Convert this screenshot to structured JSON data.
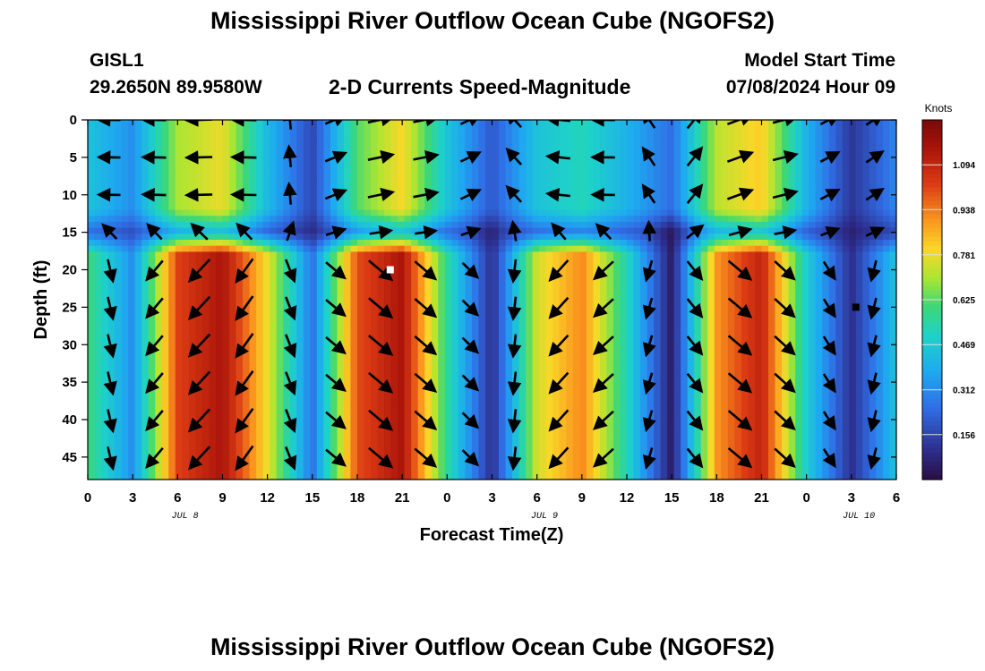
{
  "header": {
    "title": "Mississippi River Outflow Ocean Cube (NGOFS2)",
    "station": "GISL1",
    "coordinates": "29.2650N  89.9580W",
    "subtitle": "2-D Currents Speed-Magnitude",
    "model_start_label": "Model Start Time",
    "model_start_value": "07/08/2024 Hour 09"
  },
  "footer": {
    "title": "Mississippi River Outflow Ocean Cube (NGOFS2)"
  },
  "chart_data": {
    "type": "heatmap",
    "xlabel": "Forecast Time(Z)",
    "ylabel": "Depth (ft)",
    "x_tick_labels": [
      "0",
      "3",
      "6",
      "9",
      "12",
      "15",
      "18",
      "21",
      "0",
      "3",
      "6",
      "9",
      "12",
      "15",
      "18",
      "21",
      "0",
      "3",
      "6"
    ],
    "date_labels": [
      "JUL 8",
      "JUL 9",
      "JUL 10"
    ],
    "y_tick_labels": [
      "0",
      "5",
      "10",
      "15",
      "20",
      "25",
      "30",
      "35",
      "40",
      "45"
    ],
    "ylim": [
      48,
      0
    ],
    "colorbar": {
      "unit": "Knots",
      "tick_labels": [
        "1.094",
        "0.938",
        "0.781",
        "0.625",
        "0.469",
        "0.312",
        "0.156"
      ],
      "range": [
        0.0,
        1.25
      ]
    },
    "surface_layer_depths_ft": [
      0,
      5,
      10
    ],
    "deep_layer_depths_ft": [
      20,
      25,
      30,
      35,
      40,
      45
    ],
    "surface_speed_knots": [
      {
        "hour": 0,
        "value": 0.45
      },
      {
        "hour": 3,
        "value": 0.32
      },
      {
        "hour": 6,
        "value": 0.7
      },
      {
        "hour": 9,
        "value": 0.78
      },
      {
        "hour": 12,
        "value": 0.42
      },
      {
        "hour": 15,
        "value": 0.16
      },
      {
        "hour": 18,
        "value": 0.62
      },
      {
        "hour": 21,
        "value": 0.8
      },
      {
        "hour": 24,
        "value": 0.45
      },
      {
        "hour": 27,
        "value": 0.2
      },
      {
        "hour": 30,
        "value": 0.45
      },
      {
        "hour": 33,
        "value": 0.52
      },
      {
        "hour": 36,
        "value": 0.4
      },
      {
        "hour": 39,
        "value": 0.25
      },
      {
        "hour": 42,
        "value": 0.72
      },
      {
        "hour": 45,
        "value": 0.82
      },
      {
        "hour": 48,
        "value": 0.4
      },
      {
        "hour": 51,
        "value": 0.12
      },
      {
        "hour": 54,
        "value": 0.3
      }
    ],
    "deep_speed_knots": [
      {
        "hour": 0,
        "value": 0.6
      },
      {
        "hour": 3,
        "value": 0.32
      },
      {
        "hour": 6,
        "value": 1.02
      },
      {
        "hour": 9,
        "value": 1.15
      },
      {
        "hour": 12,
        "value": 0.78
      },
      {
        "hour": 15,
        "value": 0.26
      },
      {
        "hour": 18,
        "value": 1.0
      },
      {
        "hour": 21,
        "value": 1.15
      },
      {
        "hour": 24,
        "value": 0.55
      },
      {
        "hour": 27,
        "value": 0.1
      },
      {
        "hour": 30,
        "value": 0.75
      },
      {
        "hour": 33,
        "value": 0.92
      },
      {
        "hour": 36,
        "value": 0.52
      },
      {
        "hour": 39,
        "value": 0.05
      },
      {
        "hour": 42,
        "value": 0.9
      },
      {
        "hour": 45,
        "value": 1.1
      },
      {
        "hour": 48,
        "value": 0.48
      },
      {
        "hour": 51,
        "value": 0.1
      },
      {
        "hour": 54,
        "value": 0.45
      }
    ],
    "surface_direction_deg": [
      {
        "hour": 0,
        "value": 180
      },
      {
        "hour": 4,
        "value": 178
      },
      {
        "hour": 8,
        "value": 182
      },
      {
        "hour": 11,
        "value": 178
      },
      {
        "hour": 15,
        "value": 45
      },
      {
        "hour": 17,
        "value": 15
      },
      {
        "hour": 21,
        "value": 10
      },
      {
        "hour": 24,
        "value": 12
      },
      {
        "hour": 26,
        "value": 30
      },
      {
        "hour": 28,
        "value": 95
      },
      {
        "hour": 29,
        "value": 170
      },
      {
        "hour": 35,
        "value": 180
      },
      {
        "hour": 39,
        "value": 90
      },
      {
        "hour": 40,
        "value": 60
      },
      {
        "hour": 42,
        "value": 25
      },
      {
        "hour": 46,
        "value": 12
      },
      {
        "hour": 50,
        "value": 30
      },
      {
        "hour": 54,
        "value": 35
      }
    ],
    "deep_direction_deg": [
      {
        "hour": 0,
        "value": -45
      },
      {
        "hour": 4,
        "value": -130
      },
      {
        "hour": 10,
        "value": -135
      },
      {
        "hour": 15,
        "value": -40
      },
      {
        "hour": 22,
        "value": -40
      },
      {
        "hour": 26,
        "value": -45
      },
      {
        "hour": 28,
        "value": -85
      },
      {
        "hour": 30,
        "value": -130
      },
      {
        "hour": 36,
        "value": -140
      },
      {
        "hour": 38,
        "value": -95
      },
      {
        "hour": 39,
        "value": -85
      },
      {
        "hour": 41,
        "value": -40
      },
      {
        "hour": 46,
        "value": -40
      },
      {
        "hour": 50,
        "value": -60
      },
      {
        "hour": 54,
        "value": -130
      }
    ],
    "markers": [
      {
        "hour": 20.2,
        "depth_ft": 20,
        "color": "#ffffff"
      },
      {
        "hour": 51.3,
        "depth_ft": 25,
        "color": "#000000"
      }
    ]
  }
}
